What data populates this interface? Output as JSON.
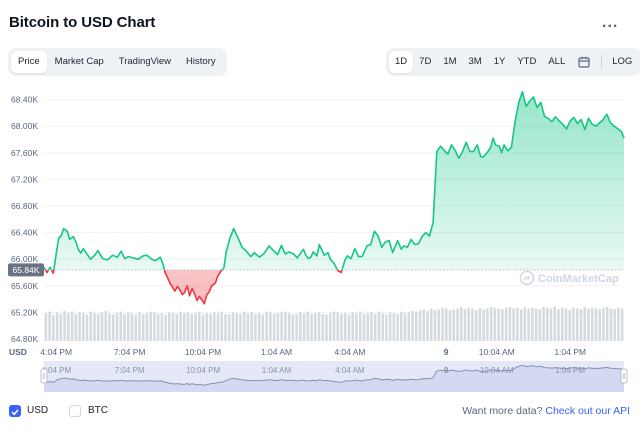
{
  "title": "Bitcoin to USD Chart",
  "more_label": "...",
  "tabs": [
    "Price",
    "Market Cap",
    "TradingView",
    "History"
  ],
  "active_tab": "Price",
  "ranges": [
    "1D",
    "7D",
    "1M",
    "3M",
    "1Y",
    "YTD",
    "ALL"
  ],
  "active_range": "1D",
  "log_label": "LOG",
  "calendar_icon": "calendar-icon",
  "colors": {
    "up": "#16c784",
    "down": "#ea3943",
    "accent": "#3861fb",
    "volume": "#d5d9e0",
    "navigator_line": "#8590b8",
    "navigator_fill": "#e5e8f6"
  },
  "chart_data": {
    "type": "area",
    "title": "",
    "xlabel": "",
    "ylabel": "",
    "currency_label": "USD",
    "y_ticks": [
      "68.40K",
      "68.00K",
      "67.60K",
      "67.20K",
      "66.80K",
      "66.40K",
      "66.00K",
      "65.60K",
      "65.20K",
      "64.80K"
    ],
    "ylim": [
      64680,
      68560
    ],
    "x_ticks": [
      "4:04 PM",
      "7:04 PM",
      "10:04 PM",
      "1:04 AM",
      "4:04 AM",
      "9",
      "10:04 AM",
      "1:04 PM"
    ],
    "x_tick_hours": [
      0,
      3,
      6,
      9,
      12,
      15.93,
      18,
      21
    ],
    "x_range_hours": [
      -0.5,
      23.2
    ],
    "baseline": 65840,
    "baseline_label": "65.84K",
    "watermark": "CoinMarketCap",
    "series": [
      {
        "hours": [
          -0.5,
          -0.38,
          -0.25,
          -0.12,
          0,
          0.1,
          0.2,
          0.3,
          0.45,
          0.55,
          0.7,
          0.8,
          0.9,
          1.0,
          1.1,
          1.25,
          1.4,
          1.55,
          1.7,
          1.9,
          2.1,
          2.3,
          2.5,
          2.65,
          2.8,
          2.95,
          3.15,
          3.35,
          3.55,
          3.7,
          3.9,
          4.05,
          4.25,
          4.35,
          4.45,
          4.55,
          4.65,
          4.75,
          4.85,
          4.95,
          5.05,
          5.15,
          5.25,
          5.35,
          5.45,
          5.55,
          5.65,
          5.75,
          5.85,
          5.95,
          6.05,
          6.15,
          6.25,
          6.35,
          6.5,
          6.6,
          6.75,
          6.85,
          6.95,
          7.1,
          7.25,
          7.45,
          7.6,
          7.75,
          7.95,
          8.1,
          8.3,
          8.5,
          8.7,
          8.9,
          9.05,
          9.2,
          9.35,
          9.5,
          9.7,
          9.85,
          10.0,
          10.1,
          10.2,
          10.3,
          10.4,
          10.5,
          10.65,
          10.75,
          10.85,
          10.95,
          11.1,
          11.2,
          11.35,
          11.5,
          11.65,
          11.8,
          11.9,
          12.05,
          12.2,
          12.35,
          12.5,
          12.7,
          12.85,
          13.0,
          13.15,
          13.3,
          13.45,
          13.6,
          13.75,
          13.95,
          14.1,
          14.2,
          14.35,
          14.5,
          14.65,
          14.8,
          14.95,
          15.1,
          15.25,
          15.4,
          15.55,
          15.7,
          15.85,
          16.0,
          16.15,
          16.3,
          16.45,
          16.6,
          16.75,
          16.9,
          17.05,
          17.2,
          17.35,
          17.45,
          17.6,
          17.75,
          17.85,
          17.95,
          18.1,
          18.2,
          18.3,
          18.45,
          18.6,
          18.75,
          18.9,
          19.05,
          19.2,
          19.35,
          19.5,
          19.65,
          19.8,
          19.95,
          20.1,
          20.25,
          20.4,
          20.55,
          20.7,
          20.85,
          21.0,
          21.15,
          21.3,
          21.45,
          21.6,
          21.75,
          21.9,
          22.05,
          22.2,
          22.35,
          22.5,
          22.65,
          22.8,
          22.95,
          23.1,
          23.2
        ],
        "values": [
          65880,
          65800,
          65880,
          65790,
          66080,
          66320,
          66350,
          66460,
          66420,
          66300,
          66340,
          66260,
          66150,
          66090,
          66160,
          66080,
          66000,
          66050,
          66130,
          66010,
          65990,
          66060,
          66030,
          66120,
          66010,
          66040,
          66020,
          66000,
          66050,
          66060,
          66000,
          65980,
          66030,
          65940,
          65800,
          65720,
          65640,
          65580,
          65520,
          65590,
          65540,
          65470,
          65500,
          65600,
          65450,
          65560,
          65480,
          65380,
          65440,
          65390,
          65330,
          65460,
          65510,
          65600,
          65640,
          65750,
          65830,
          65870,
          66120,
          66320,
          66460,
          66300,
          66180,
          66130,
          66040,
          66100,
          66030,
          66090,
          66200,
          66120,
          66070,
          66210,
          66080,
          66110,
          66080,
          66020,
          66100,
          66150,
          66060,
          66010,
          66030,
          66110,
          66050,
          66220,
          66140,
          66060,
          66100,
          66000,
          65940,
          65830,
          65800,
          65990,
          66050,
          66010,
          66160,
          66040,
          66040,
          66200,
          66220,
          66420,
          66350,
          66180,
          66260,
          66280,
          66100,
          66280,
          66150,
          66200,
          66180,
          66300,
          66220,
          66230,
          66340,
          66400,
          66350,
          66550,
          67620,
          67700,
          67640,
          67580,
          67720,
          67640,
          67520,
          67620,
          67760,
          67620,
          67620,
          67720,
          67540,
          67540,
          67600,
          67680,
          67820,
          67720,
          67700,
          67600,
          67720,
          67630,
          67680,
          68070,
          68360,
          68520,
          68300,
          68380,
          68440,
          68280,
          68360,
          68150,
          68120,
          68070,
          68140,
          68080,
          68030,
          67960,
          68080,
          68130,
          68040,
          68100,
          67950,
          68120,
          68030,
          68000,
          68050,
          68100,
          68180,
          68050,
          68000,
          67960,
          67920,
          67820
        ]
      }
    ],
    "volume": [
      36,
      38,
      34,
      37,
      35,
      39,
      36,
      38,
      35,
      37,
      36,
      34,
      38,
      36,
      35,
      37,
      39,
      36,
      34,
      36,
      38,
      35,
      37,
      36,
      34,
      37,
      35,
      36,
      38,
      37,
      35,
      36,
      34,
      37,
      36,
      35,
      38,
      36,
      37,
      35,
      36,
      38,
      34,
      36,
      35,
      37,
      36,
      38,
      35,
      34,
      37,
      36,
      35,
      38,
      36,
      37,
      35,
      36,
      34,
      38,
      37,
      35,
      36,
      37,
      38,
      36,
      34,
      35,
      37,
      36,
      38,
      35,
      36,
      37,
      35,
      34,
      36,
      38,
      37,
      35,
      36,
      34,
      37,
      36,
      38,
      35,
      36,
      37,
      35,
      38,
      36,
      34,
      37,
      36,
      35,
      38,
      36,
      37,
      39,
      38,
      40,
      41,
      39,
      42,
      40,
      41,
      43,
      42,
      40,
      41,
      42,
      44,
      41,
      43,
      42,
      40,
      43,
      41,
      42,
      44,
      43,
      42,
      41,
      43,
      44,
      42,
      43,
      41,
      44,
      42,
      43,
      42,
      41,
      44,
      43,
      42,
      44,
      41,
      43,
      42,
      40,
      43,
      42,
      41,
      44,
      42,
      43,
      42,
      41,
      43,
      44,
      42,
      41,
      43,
      42
    ]
  },
  "footer": {
    "usd_label": "USD",
    "btc_label": "BTC",
    "api_prompt": "Want more data?",
    "api_link": "Check out our API"
  }
}
